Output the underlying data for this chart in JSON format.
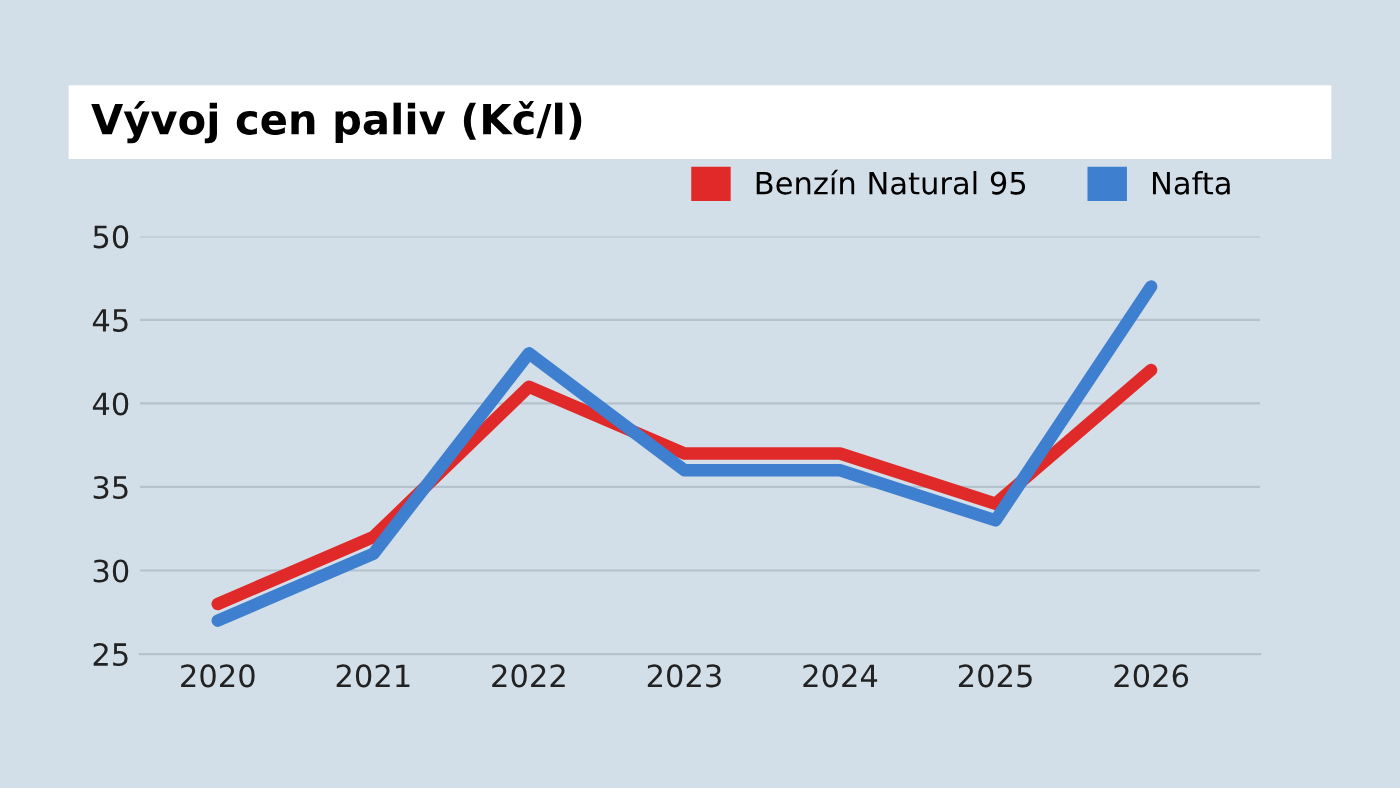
{
  "chart_data": {
    "type": "line",
    "title": "Vývoj cen paliv (Kč/l)",
    "categories": [
      "2020",
      "2021",
      "2022",
      "2023",
      "2024",
      "2025",
      "2026"
    ],
    "series": [
      {
        "name": "Benzín Natural 95",
        "color": "#e02a2a",
        "values": [
          28,
          32,
          41,
          37,
          37,
          34,
          42
        ]
      },
      {
        "name": "Nafta",
        "color": "#3f7fd0",
        "values": [
          27,
          31,
          43,
          36,
          36,
          33,
          47
        ]
      }
    ],
    "ylim": [
      25,
      50
    ],
    "yticks": [
      25,
      30,
      35,
      40,
      45,
      50
    ],
    "grid": "y",
    "legend": "top right",
    "marker": "none",
    "line_style": "solid"
  }
}
